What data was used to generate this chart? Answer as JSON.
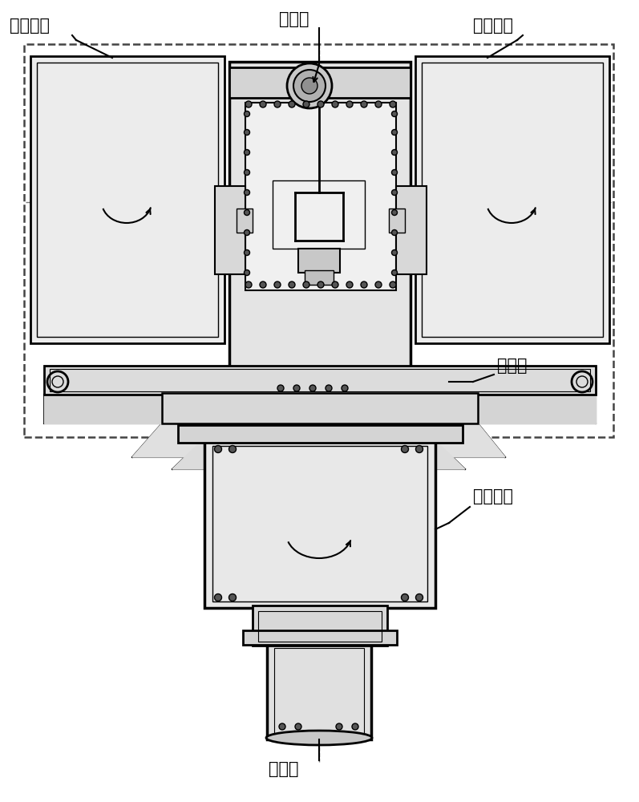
{
  "title": "",
  "bg_color": "#ffffff",
  "line_color": "#000000",
  "labels": {
    "top_left": "俯仰机构",
    "top_right": "俯仰机构",
    "top_center": "双向锁",
    "right_mid": "俯仰轴",
    "right_lower": "方位机构",
    "bottom_center": "方位轴"
  },
  "figsize": [
    7.97,
    10.0
  ],
  "dpi": 100
}
